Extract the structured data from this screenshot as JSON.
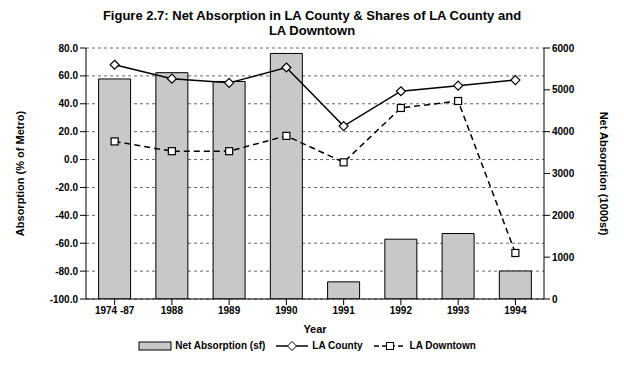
{
  "chart_data": {
    "type": "bar",
    "title": "Figure 2.7: Net Absorption in LA County & Shares of  LA County and LA Downtown",
    "x_label": "Year",
    "y_label": "Absorption (% of Metro)",
    "y2_label": "Net Absorption (1000sf)",
    "categories": [
      "1974 -87",
      "1988",
      "1989",
      "1990",
      "1991",
      "1992",
      "1993",
      "1994"
    ],
    "series": [
      {
        "name": "Net Absorption (sf)",
        "type": "bar",
        "axis": "y2",
        "color": "#c8c8c8",
        "values": [
          5260,
          5410,
          5200,
          5870,
          410,
          1430,
          1565,
          670
        ]
      },
      {
        "name": "LA County",
        "type": "line",
        "color": "#000000",
        "marker": "diamond",
        "line_style": "solid",
        "values": [
          68,
          58,
          55,
          66,
          24,
          49,
          53,
          57
        ]
      },
      {
        "name": "LA Downtown",
        "type": "line",
        "color": "#000000",
        "marker": "square",
        "line_style": "dashed",
        "values": [
          13,
          6,
          6,
          17,
          -2,
          37,
          42,
          -67
        ]
      }
    ],
    "ylim": [
      -100,
      80
    ],
    "yticks": [
      {
        "value": -100,
        "label": "-100.0"
      },
      {
        "value": -80,
        "label": "-80.0"
      },
      {
        "value": -60,
        "label": "-60.0"
      },
      {
        "value": -40,
        "label": "-40.0"
      },
      {
        "value": -20,
        "label": "-20.0"
      },
      {
        "value": 0,
        "label": "0.0"
      },
      {
        "value": 20,
        "label": "20.0"
      },
      {
        "value": 40,
        "label": "40.0"
      },
      {
        "value": 60,
        "label": "60.0"
      },
      {
        "value": 80,
        "label": "80.0"
      }
    ],
    "y2lim": [
      0,
      6000
    ],
    "y2ticks": [
      0,
      1000,
      2000,
      3000,
      4000,
      5000,
      6000
    ],
    "grid": true,
    "legend": "bottom"
  }
}
